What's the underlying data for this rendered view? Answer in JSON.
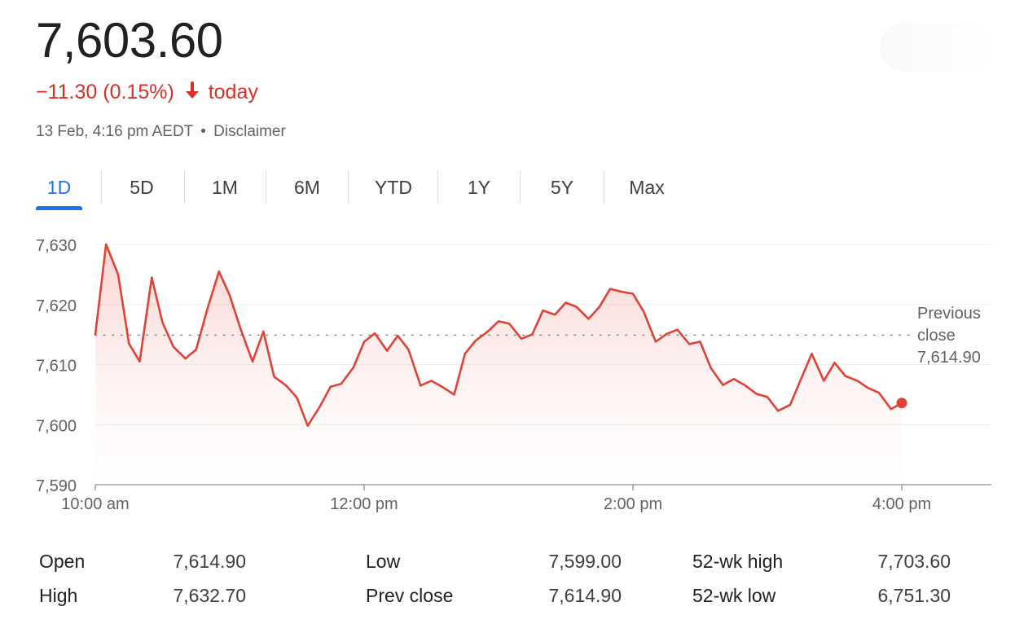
{
  "quote": {
    "price": "7,603.60",
    "change_text": "−11.30 (0.15%)",
    "today_label": "today",
    "timestamp": "13 Feb, 4:16 pm AEDT",
    "separator": "•",
    "disclaimer_label": "Disclaimer",
    "colors": {
      "down": "#d93025",
      "accent": "#1a73e8"
    }
  },
  "tabs": [
    {
      "label": "1D",
      "active": true
    },
    {
      "label": "5D"
    },
    {
      "label": "1M"
    },
    {
      "label": "6M"
    },
    {
      "label": "YTD"
    },
    {
      "label": "1Y"
    },
    {
      "label": "5Y"
    },
    {
      "label": "Max"
    }
  ],
  "chart_data": {
    "type": "line",
    "ylim": [
      7590,
      7630
    ],
    "y_ticks": [
      "7,630",
      "7,620",
      "7,610",
      "7,600",
      "7,590"
    ],
    "y_tick_values": [
      7630,
      7620,
      7610,
      7600,
      7590
    ],
    "x_ticks": [
      "10:00 am",
      "12:00 pm",
      "2:00 pm",
      "4:00 pm"
    ],
    "x_tick_hours": [
      10,
      12,
      14,
      16
    ],
    "xlim_hours": [
      10,
      16.67
    ],
    "reference_line": {
      "label": [
        "Previous",
        "close",
        "7,614.90"
      ],
      "value": 7614.9,
      "style": "dotted"
    },
    "last_point_marker": true,
    "line_color": "#e04238",
    "series": [
      {
        "x_hours": [
          10.0,
          10.08,
          10.17,
          10.25,
          10.33,
          10.42,
          10.5,
          10.58,
          10.67,
          10.75,
          10.83,
          10.92,
          11.0,
          11.08,
          11.17,
          11.25,
          11.33,
          11.42,
          11.5,
          11.58,
          11.67,
          11.75,
          11.83,
          11.92,
          12.0,
          12.08,
          12.17,
          12.25,
          12.33,
          12.42,
          12.5,
          12.58,
          12.67,
          12.75,
          12.83,
          12.92,
          13.0,
          13.08,
          13.17,
          13.25,
          13.33,
          13.42,
          13.5,
          13.58,
          13.67,
          13.75,
          13.83,
          13.92,
          14.0,
          14.08,
          14.17,
          14.25,
          14.33,
          14.42,
          14.5,
          14.58,
          14.67,
          14.75,
          14.83,
          14.92,
          15.0,
          15.08,
          15.17,
          15.25,
          15.33,
          15.42,
          15.5,
          15.58,
          15.67,
          15.75,
          15.83,
          15.92,
          16.0
        ],
        "values": [
          7615.0,
          7630.0,
          7625.0,
          7613.5,
          7610.5,
          7624.5,
          7617.0,
          7613.0,
          7611.0,
          7612.5,
          7619.0,
          7625.5,
          7621.5,
          7616.0,
          7610.5,
          7615.5,
          7608.0,
          7606.5,
          7604.5,
          7599.8,
          7603.0,
          7606.3,
          7606.8,
          7609.5,
          7613.8,
          7615.2,
          7612.3,
          7614.8,
          7612.5,
          7606.5,
          7607.3,
          7606.3,
          7605.0,
          7611.8,
          7614.0,
          7615.5,
          7617.2,
          7616.8,
          7614.3,
          7615.0,
          7619.0,
          7618.3,
          7620.3,
          7619.6,
          7617.6,
          7619.6,
          7622.6,
          7622.1,
          7621.8,
          7618.8,
          7613.8,
          7615.1,
          7615.8,
          7613.4,
          7613.8,
          7609.4,
          7606.6,
          7607.6,
          7606.6,
          7605.1,
          7604.6,
          7602.3,
          7603.3,
          7607.6,
          7611.8,
          7607.3,
          7610.3,
          7608.1,
          7607.3,
          7606.1,
          7605.3,
          7602.6,
          7603.6
        ]
      }
    ]
  },
  "stats": [
    {
      "label": "Open",
      "value": "7,614.90"
    },
    {
      "label": "High",
      "value": "7,632.70"
    },
    {
      "label": "Low",
      "value": "7,599.00"
    },
    {
      "label": "Prev close",
      "value": "7,614.90"
    },
    {
      "label": "52-wk high",
      "value": "7,703.60"
    },
    {
      "label": "52-wk low",
      "value": "6,751.30"
    }
  ]
}
